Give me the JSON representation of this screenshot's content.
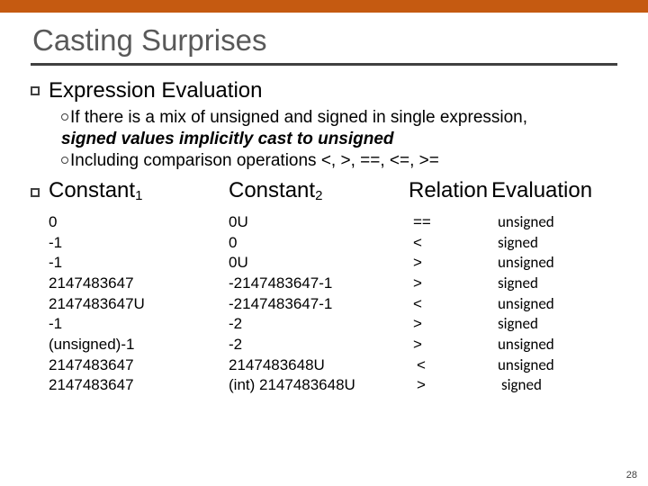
{
  "title": "Casting Surprises",
  "lvl1a": "Expression Evaluation",
  "sub1_a": "If there is a mix of unsigned and signed in single expression,",
  "sub1_b": "signed values implicitly cast to unsigned",
  "sub2": "Including comparison operations <, >, ==, <=, >=",
  "hdr": {
    "c1a": "Constant",
    "c1b": "1",
    "c2a": "Constant",
    "c2b": "2",
    "c3": "Relation",
    "c4": "Evaluation"
  },
  "rows": [
    {
      "c1": "0",
      "c2": "0U",
      "c3": "==",
      "c4": "unsigned"
    },
    {
      "c1": "-1",
      "c2": "0",
      "c3": "<",
      "c4": "signed"
    },
    {
      "c1": "-1",
      "c2": "0U",
      "c3": ">",
      "c4": "unsigned"
    },
    {
      "c1": "2147483647",
      "c2": "-2147483647-1",
      "c3": ">",
      "c4": "signed"
    },
    {
      "c1": "2147483647U",
      "c2": "-2147483647-1",
      "c3": "<",
      "c4": "unsigned"
    },
    {
      "c1": "-1",
      "c2": "-2",
      "c3": ">",
      "c4": "signed"
    },
    {
      "c1": "(unsigned)-1",
      "c2": "-2",
      "c3": ">",
      "c4": "unsigned"
    },
    {
      "c1": " 2147483647",
      "c2": "2147483648U",
      "c3": "<",
      "c4": "unsigned"
    },
    {
      "c1": " 2147483647",
      "c2": "(int) 2147483648U",
      "c3": ">",
      "c4": "signed"
    }
  ],
  "pagenum": "28",
  "colors": {
    "bar": "#c55a11",
    "title": "#595959",
    "rule": "#404040"
  }
}
